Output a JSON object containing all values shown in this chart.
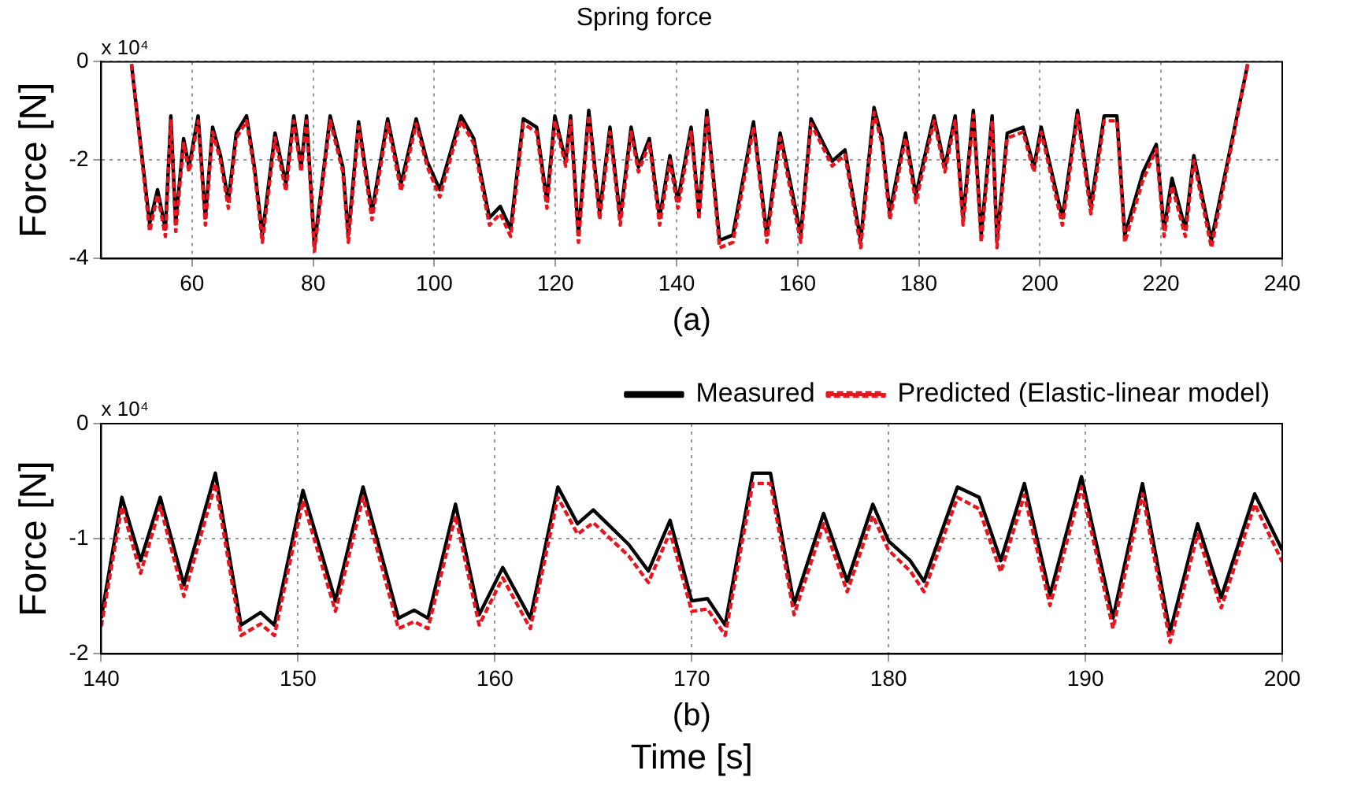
{
  "chart_data": [
    {
      "type": "line",
      "title": "Spring force",
      "ylabel": "Force [N]",
      "annotations": [
        "x 10⁴",
        "(a)"
      ],
      "xlim": [
        45,
        240
      ],
      "xticks": [
        60,
        80,
        100,
        120,
        140,
        160,
        180,
        200,
        220,
        240
      ],
      "ylim": [
        -4,
        0
      ],
      "yticks": [
        0,
        -2,
        -4
      ],
      "grid": true,
      "x": [
        50.0,
        53.0,
        54.3,
        55.6,
        56.5,
        57.3,
        58.6,
        59.5,
        61.0,
        62.2,
        63.4,
        64.7,
        66.0,
        67.3,
        69.0,
        70.3,
        71.6,
        73.7,
        75.5,
        76.8,
        78.0,
        78.9,
        80.2,
        82.8,
        84.9,
        85.8,
        87.5,
        89.7,
        92.3,
        94.5,
        97.0,
        98.8,
        100.9,
        104.4,
        106.5,
        109.1,
        110.9,
        112.6,
        114.7,
        116.9,
        118.6,
        119.9,
        121.7,
        122.5,
        123.8,
        125.5,
        127.3,
        129.0,
        130.7,
        132.5,
        133.7,
        135.5,
        137.2,
        138.9,
        140.2,
        142.4,
        143.7,
        145.0,
        147.1,
        149.3,
        152.7,
        154.9,
        157.1,
        159.2,
        160.5,
        162.2,
        165.7,
        167.8,
        170.4,
        172.6,
        173.9,
        175.2,
        177.8,
        179.5,
        182.5,
        184.3,
        186.0,
        187.3,
        189.0,
        190.3,
        192.1,
        192.9,
        194.6,
        197.2,
        199.0,
        200.2,
        203.7,
        206.2,
        208.4,
        210.6,
        212.7,
        214.0,
        217.0,
        219.2,
        220.5,
        221.8,
        224.0,
        225.4,
        228.3,
        234.3
      ],
      "series": [
        {
          "color": "#000000",
          "line_style": "solid",
          "values": [
            -0.05,
            -3.29,
            -2.6,
            -3.4,
            -1.1,
            -3.29,
            -1.56,
            -2.14,
            -1.1,
            -3.17,
            -1.33,
            -1.91,
            -2.83,
            -1.45,
            -1.1,
            -2.14,
            -3.52,
            -1.45,
            -2.48,
            -1.1,
            -2.14,
            -1.1,
            -3.75,
            -1.1,
            -2.14,
            -3.52,
            -1.22,
            -3.06,
            -1.16,
            -2.48,
            -1.16,
            -2.02,
            -2.6,
            -1.1,
            -1.56,
            -3.17,
            -2.94,
            -3.4,
            -1.16,
            -1.33,
            -2.83,
            -1.1,
            -2.02,
            -1.1,
            -3.52,
            -0.99,
            -3.06,
            -1.33,
            -3.17,
            -1.33,
            -2.14,
            -1.56,
            -3.17,
            -1.91,
            -2.83,
            -1.33,
            -3.06,
            -0.99,
            -3.63,
            -3.52,
            -1.22,
            -3.52,
            -1.45,
            -2.71,
            -3.52,
            -1.16,
            -2.02,
            -1.79,
            -3.63,
            -0.93,
            -1.56,
            -3.06,
            -1.45,
            -2.71,
            -1.1,
            -2.14,
            -1.1,
            -3.17,
            -0.99,
            -3.52,
            -1.1,
            -3.63,
            -1.45,
            -1.33,
            -2.14,
            -1.33,
            -3.17,
            -0.99,
            -2.94,
            -1.1,
            -1.1,
            -3.52,
            -2.25,
            -1.68,
            -3.4,
            -2.37,
            -3.4,
            -1.91,
            -3.63,
            -0.05
          ]
        },
        {
          "color": "#e8141e",
          "line_style": "dashed",
          "values": [
            -0.05,
            -3.45,
            -2.7,
            -3.55,
            -1.2,
            -3.45,
            -1.66,
            -2.24,
            -1.2,
            -3.32,
            -1.43,
            -2.01,
            -2.98,
            -1.55,
            -1.2,
            -2.24,
            -3.67,
            -1.55,
            -2.63,
            -1.2,
            -2.24,
            -1.2,
            -3.85,
            -1.2,
            -2.24,
            -3.67,
            -1.32,
            -3.21,
            -1.26,
            -2.63,
            -1.26,
            -2.12,
            -2.75,
            -1.2,
            -1.66,
            -3.32,
            -3.09,
            -3.55,
            -1.26,
            -1.43,
            -2.98,
            -1.2,
            -2.12,
            -1.2,
            -3.67,
            -1.09,
            -3.21,
            -1.43,
            -3.32,
            -1.43,
            -2.24,
            -1.66,
            -3.32,
            -2.01,
            -2.98,
            -1.43,
            -3.21,
            -1.09,
            -3.78,
            -3.67,
            -1.32,
            -3.67,
            -1.55,
            -2.86,
            -3.67,
            -1.26,
            -2.12,
            -1.89,
            -3.78,
            -1.03,
            -1.66,
            -3.21,
            -1.55,
            -2.86,
            -1.2,
            -2.24,
            -1.2,
            -3.32,
            -1.09,
            -3.67,
            -1.2,
            -3.78,
            -1.55,
            -1.43,
            -2.24,
            -1.43,
            -3.32,
            -1.09,
            -3.09,
            -1.2,
            -1.2,
            -3.67,
            -2.4,
            -1.78,
            -3.55,
            -2.52,
            -3.55,
            -2.01,
            -3.78,
            -0.05
          ]
        }
      ]
    },
    {
      "type": "line",
      "xlabel": "Time [s]",
      "ylabel": "Force [N]",
      "annotations": [
        "x 10⁴",
        "(b)"
      ],
      "xlim": [
        140,
        200
      ],
      "xticks": [
        140,
        150,
        160,
        170,
        180,
        190,
        200
      ],
      "ylim": [
        -2,
        0
      ],
      "yticks": [
        0,
        -1,
        -2
      ],
      "grid": true,
      "legend": "top right",
      "x": [
        140.0,
        141.05,
        142.0,
        143.0,
        144.2,
        145.8,
        147.1,
        148.1,
        148.8,
        150.25,
        151.9,
        153.3,
        155.1,
        155.9,
        156.6,
        158.0,
        159.2,
        160.4,
        161.8,
        163.2,
        164.2,
        165.0,
        166.8,
        167.8,
        168.9,
        170.0,
        170.8,
        171.7,
        173.1,
        174.0,
        175.2,
        176.7,
        177.9,
        179.2,
        180.0,
        181.1,
        181.8,
        183.5,
        184.6,
        185.7,
        186.9,
        188.2,
        189.8,
        191.4,
        192.9,
        194.3,
        195.7,
        196.9,
        198.6,
        200.0
      ],
      "series": [
        {
          "name": "Measured",
          "color": "#000000",
          "line_style": "solid",
          "values": [
            -1.69,
            -0.64,
            -1.19,
            -0.64,
            -1.4,
            -0.43,
            -1.75,
            -1.64,
            -1.75,
            -0.58,
            -1.54,
            -0.55,
            -1.69,
            -1.62,
            -1.69,
            -0.7,
            -1.66,
            -1.25,
            -1.69,
            -0.55,
            -0.87,
            -0.75,
            -1.05,
            -1.28,
            -0.84,
            -1.54,
            -1.52,
            -1.75,
            -0.43,
            -0.43,
            -1.57,
            -0.78,
            -1.37,
            -0.7,
            -1.02,
            -1.19,
            -1.37,
            -0.55,
            -0.64,
            -1.19,
            -0.52,
            -1.49,
            -0.46,
            -1.69,
            -0.52,
            -1.81,
            -0.87,
            -1.51,
            -0.61,
            -1.1
          ]
        },
        {
          "name": "Predicted (Elastic-linear model)",
          "color": "#e8141e",
          "line_style": "dashed",
          "values": [
            -1.76,
            -0.72,
            -1.3,
            -0.72,
            -1.5,
            -0.52,
            -1.84,
            -1.74,
            -1.84,
            -0.67,
            -1.63,
            -0.64,
            -1.78,
            -1.72,
            -1.78,
            -0.8,
            -1.75,
            -1.34,
            -1.78,
            -0.64,
            -0.96,
            -0.86,
            -1.15,
            -1.38,
            -0.94,
            -1.63,
            -1.61,
            -1.84,
            -0.52,
            -0.52,
            -1.66,
            -0.87,
            -1.46,
            -0.8,
            -1.1,
            -1.28,
            -1.46,
            -0.64,
            -0.74,
            -1.29,
            -0.62,
            -1.58,
            -0.55,
            -1.78,
            -0.61,
            -1.9,
            -0.96,
            -1.6,
            -0.7,
            -1.2
          ]
        }
      ]
    }
  ]
}
